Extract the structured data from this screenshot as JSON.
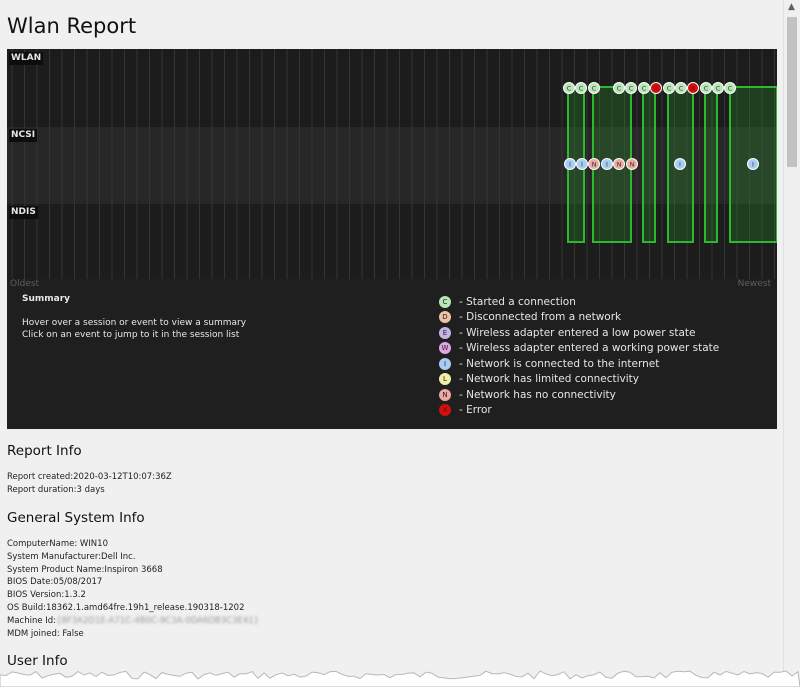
{
  "page": {
    "title": "Wlan Report"
  },
  "timeline": {
    "lanes": [
      "WLAN",
      "NCSI",
      "NDIS"
    ],
    "axis_start": "Oldest",
    "axis_end": "Newest",
    "wlan_events": [
      "C",
      "C",
      "C",
      "C",
      "C",
      "C",
      "X",
      "C",
      "C",
      "X",
      "C",
      "C",
      "C"
    ],
    "ncsi_events": [
      "I",
      "I",
      "N",
      "I",
      "N",
      "N",
      "I",
      "I"
    ],
    "event_colors": {
      "C": "#b9e6b7",
      "D": "#f1c0a6",
      "L": "#f2efaa",
      "E": "#c4b5e8",
      "W": "#e1a5e6",
      "I": "#a9cdf2",
      "N": "#eea7a1",
      "X": "#d01010"
    },
    "session_color": "#2db82d"
  },
  "summary": {
    "title": "Summary",
    "line1": "Hover over a session or event to view a summary",
    "line2": "Click on an event to jump to it in the session list"
  },
  "legend": [
    {
      "glyph": "C",
      "color": "#b9e6b7",
      "text": "- Started a connection"
    },
    {
      "glyph": "D",
      "color": "#f1c0a6",
      "text": "- Disconnected from a network"
    },
    {
      "glyph": "E",
      "color": "#c4b5e8",
      "text": "- Wireless adapter entered a low power state"
    },
    {
      "glyph": "W",
      "color": "#e1a5e6",
      "text": "- Wireless adapter entered a working power state"
    },
    {
      "glyph": "I",
      "color": "#a9cdf2",
      "text": "- Network is connected to the internet"
    },
    {
      "glyph": "L",
      "color": "#f2efaa",
      "text": "- Network has limited connectivity"
    },
    {
      "glyph": "N",
      "color": "#eea7a1",
      "text": "- Network has no connectivity"
    },
    {
      "glyph": "X",
      "color": "#d01010",
      "text": "- Error"
    }
  ],
  "report_info": {
    "heading": "Report Info",
    "created": "Report created:2020-03-12T10:07:36Z",
    "duration": "Report duration:3 days"
  },
  "system_info": {
    "heading": "General System Info",
    "computer_name": "ComputerName: WIN10",
    "manufacturer": "System Manufacturer:Dell Inc.",
    "product_name": "System Product Name:Inspiron 3668",
    "bios_date": "BIOS Date:05/08/2017",
    "bios_version": "BIOS Version:1.3.2",
    "os_build": "OS Build:18362.1.amd64fre.19h1_release.190318-1202",
    "machine_id_label": "Machine Id:",
    "machine_id_value": "{8F3A2D1E-A71C-4B0C-9C3A-0DA6DB3C3E41}",
    "mdm": "MDM joined: False"
  },
  "user_info": {
    "heading": "User Info"
  }
}
